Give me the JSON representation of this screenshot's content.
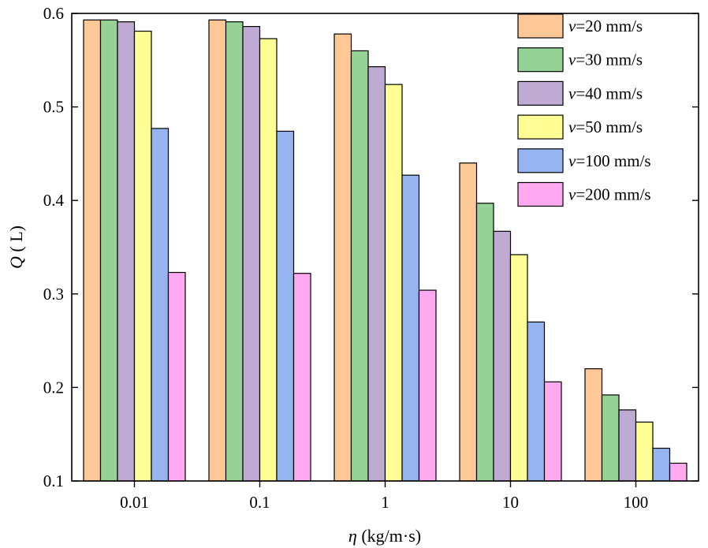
{
  "chart_data": {
    "type": "bar",
    "title": "",
    "xlabel": "η (kg/m·s)",
    "ylabel": "Q ( L)",
    "categories": [
      "0.01",
      "0.1",
      "1",
      "10",
      "100"
    ],
    "ylim": [
      0.1,
      0.6
    ],
    "yticks": [
      "0.1",
      "0.2",
      "0.3",
      "0.4",
      "0.5",
      "0.6"
    ],
    "grid": false,
    "legend_position": "top-right",
    "series": [
      {
        "name": "v=20 mm/s",
        "color": "#FFC896",
        "values": [
          0.593,
          0.593,
          0.578,
          0.44,
          0.22
        ]
      },
      {
        "name": "v=30 mm/s",
        "color": "#96D296",
        "values": [
          0.593,
          0.591,
          0.56,
          0.397,
          0.192
        ]
      },
      {
        "name": "v=40 mm/s",
        "color": "#BEAAD2",
        "values": [
          0.591,
          0.586,
          0.543,
          0.367,
          0.176
        ]
      },
      {
        "name": "v=50 mm/s",
        "color": "#FFFF96",
        "values": [
          0.581,
          0.573,
          0.524,
          0.342,
          0.163
        ]
      },
      {
        "name": "v=100 mm/s",
        "color": "#96B4F0",
        "values": [
          0.477,
          0.474,
          0.427,
          0.27,
          0.135
        ]
      },
      {
        "name": "v=200 mm/s",
        "color": "#FFAAF0",
        "values": [
          0.323,
          0.322,
          0.304,
          0.206,
          0.119
        ]
      }
    ]
  }
}
